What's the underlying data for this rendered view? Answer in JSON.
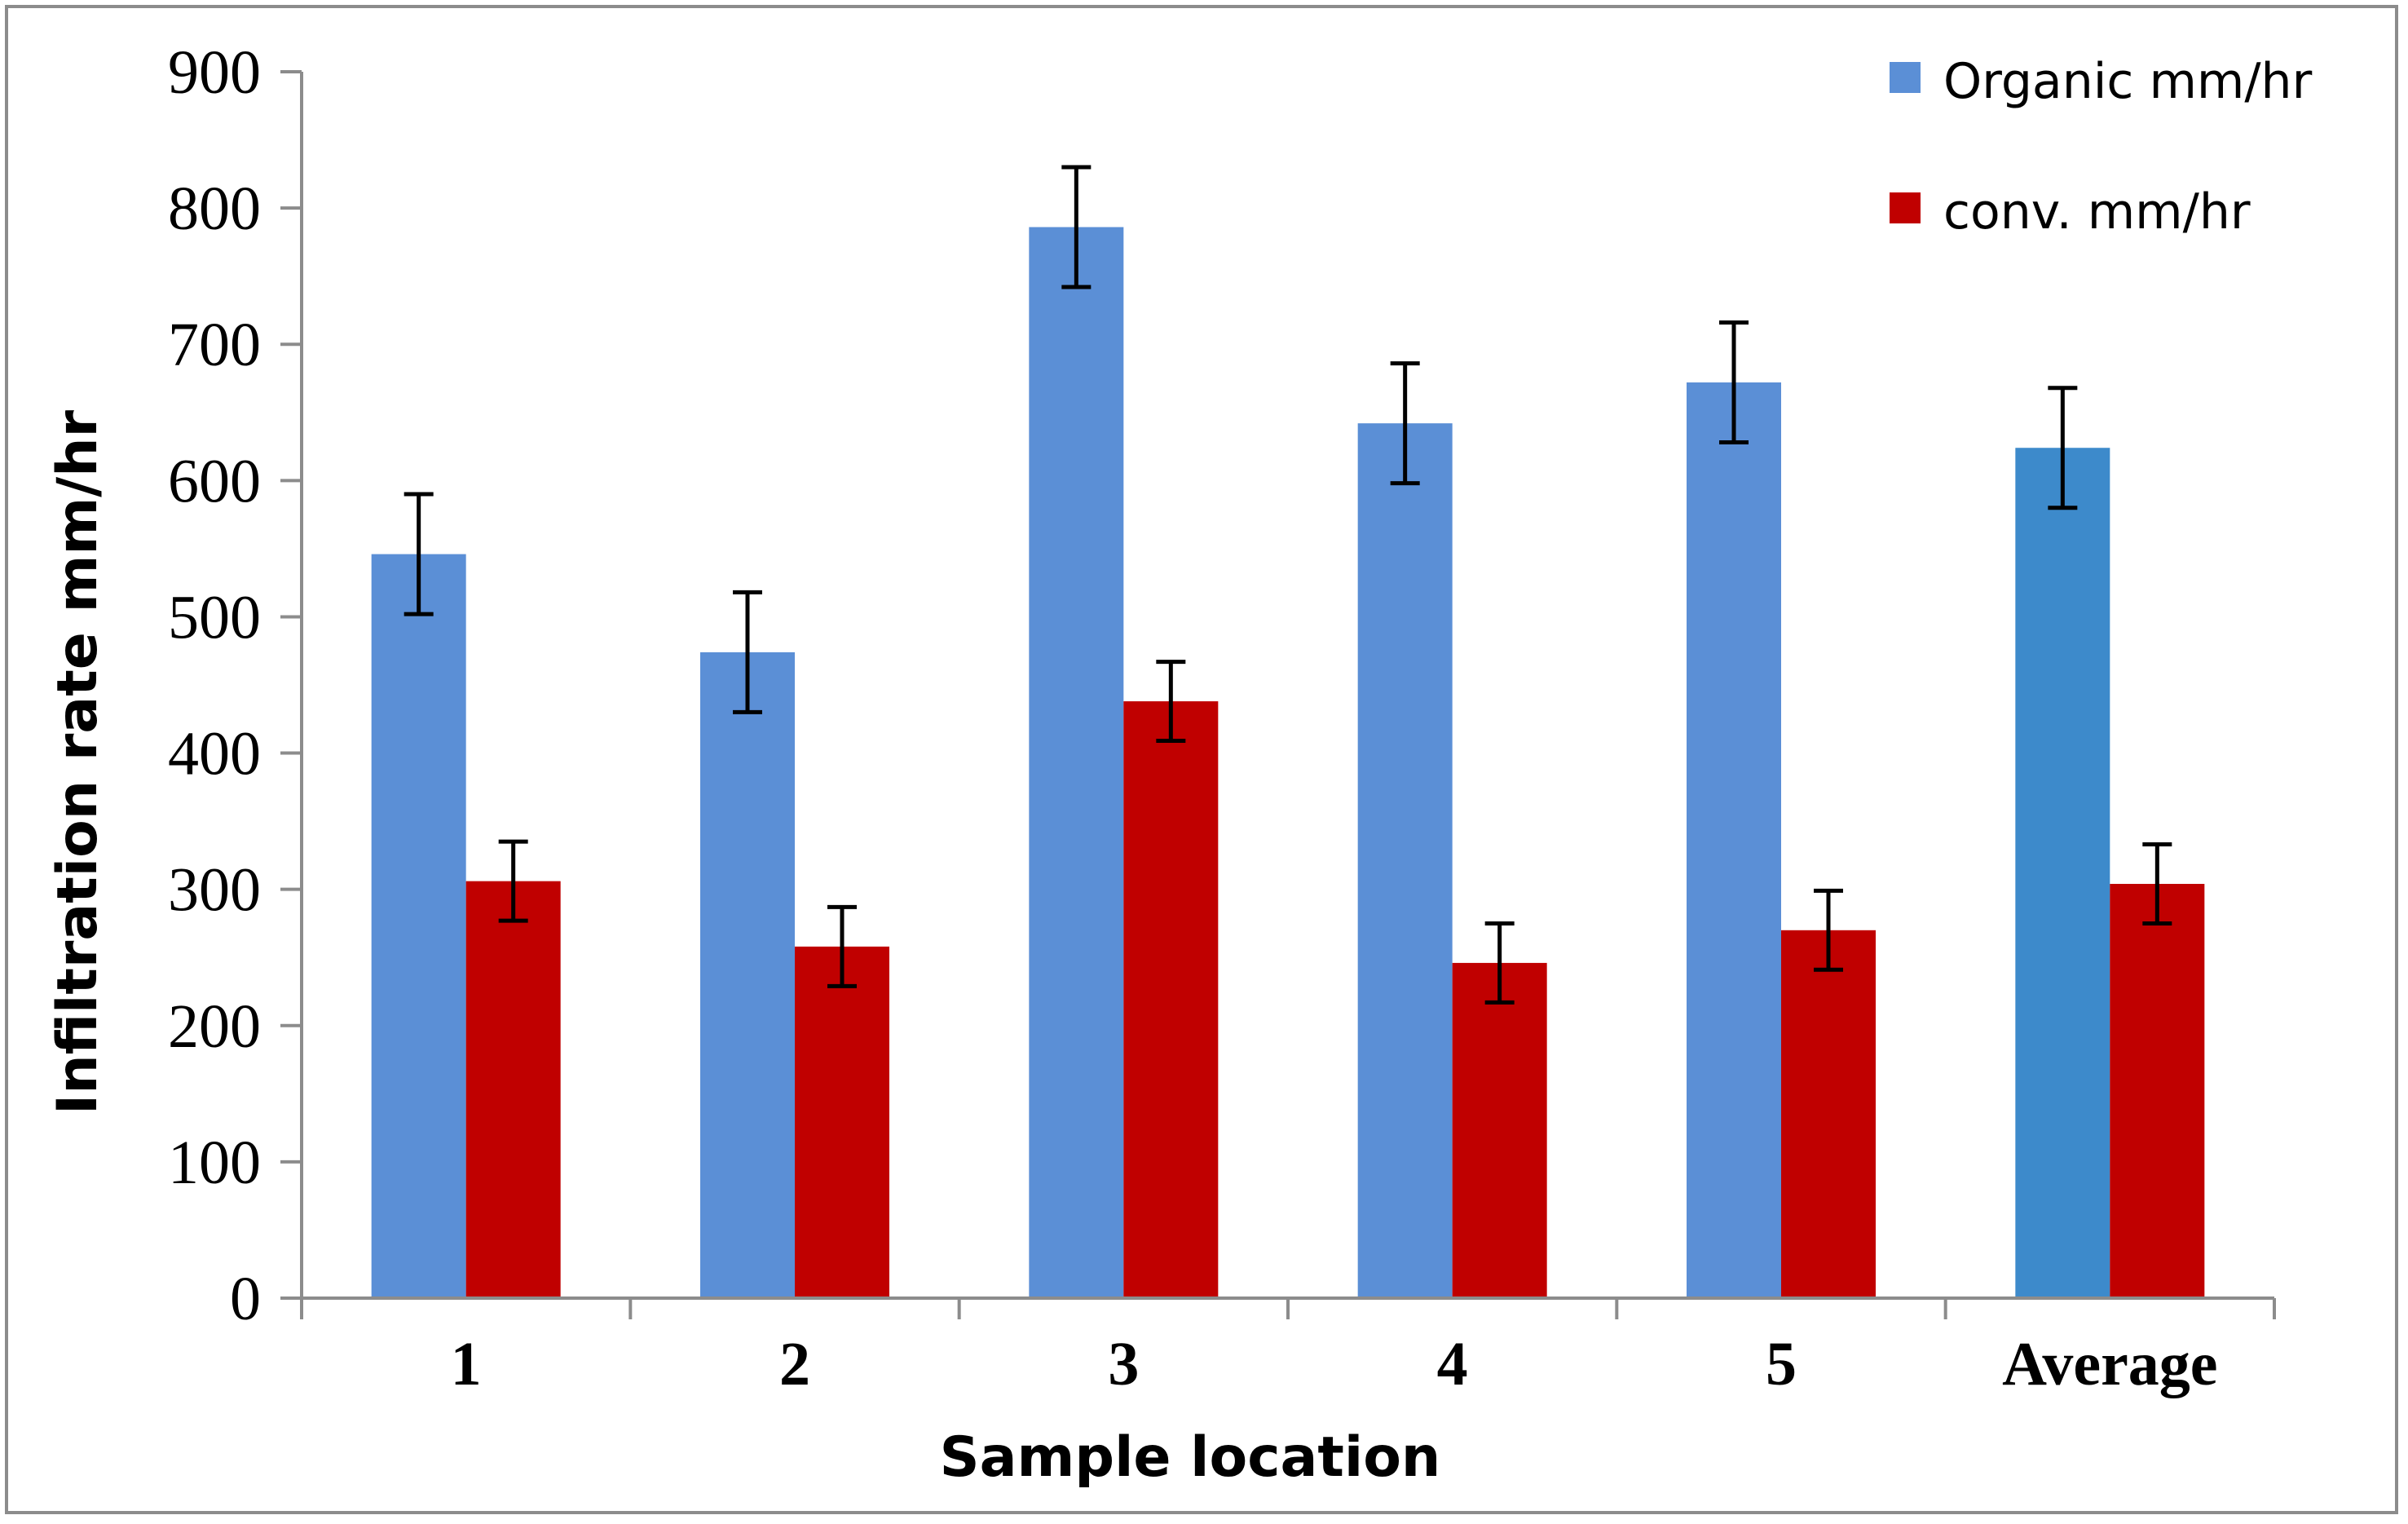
{
  "chart_data": {
    "type": "bar",
    "title": "",
    "xlabel": "Sample location",
    "ylabel": "Infiltration rate mm/hr",
    "ylim": [
      0,
      900
    ],
    "yticks": [
      "0",
      "100",
      "200",
      "300",
      "400",
      "500",
      "600",
      "700",
      "800",
      "900"
    ],
    "categories": [
      "1",
      "2",
      "3",
      "4",
      "5",
      "Average"
    ],
    "series": [
      {
        "name": "Organic mm/hr",
        "color": "#5b8fd6",
        "highlight_color": "#3d8acb",
        "values": [
          546,
          474,
          786,
          642,
          672,
          624
        ],
        "error": [
          44,
          44,
          44,
          44,
          44,
          44
        ]
      },
      {
        "name": "conv. mm/hr",
        "color": "#c00000",
        "values": [
          306,
          258,
          438,
          246,
          270,
          304
        ],
        "error": [
          29,
          29,
          29,
          29,
          29,
          29
        ]
      }
    ],
    "legend_position": "top-right",
    "grid": false
  }
}
